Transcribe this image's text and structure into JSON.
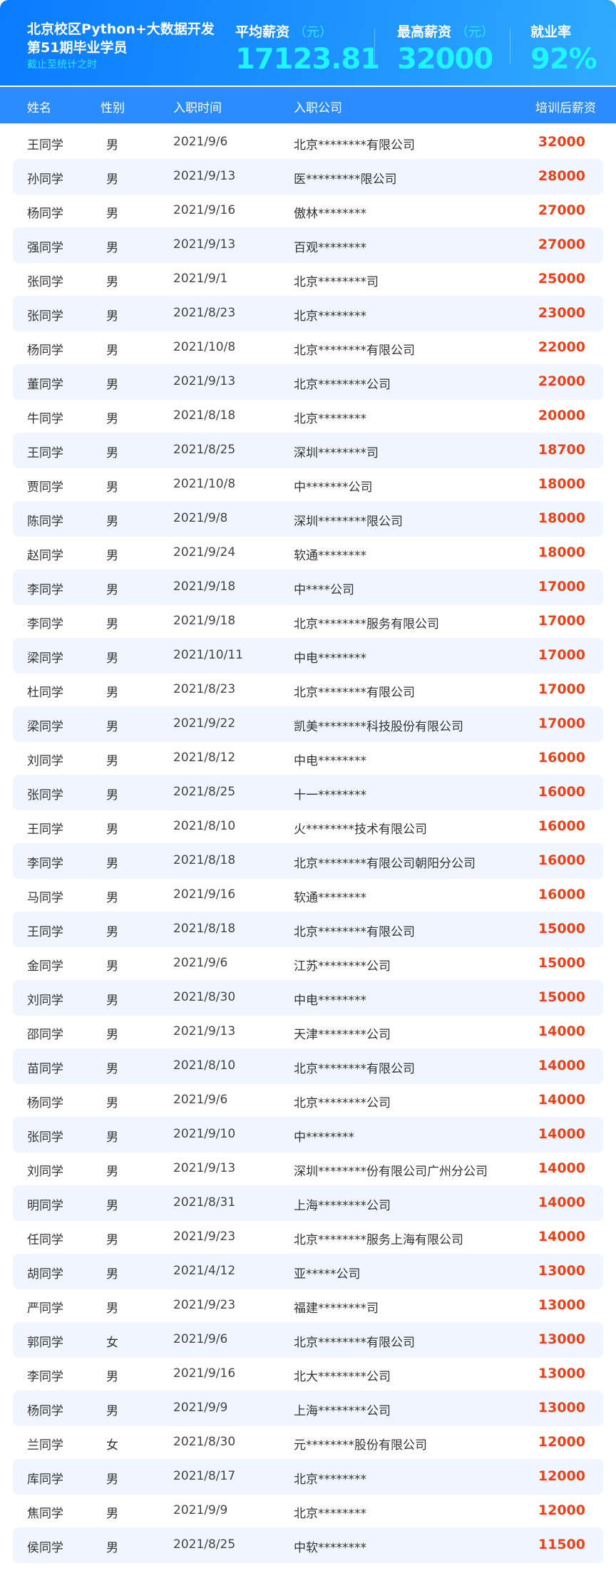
{
  "header": {
    "title_line1": "北京校区Python+大数据开发",
    "title_line2": "第51期毕业学员",
    "subtitle": "截止至统计之时",
    "stats": [
      {
        "label": "平均薪资",
        "unit": "（元）",
        "value": "17123.81"
      },
      {
        "label": "最高薪资",
        "unit": "（元）",
        "value": "32000"
      },
      {
        "label": "就业率",
        "unit": "",
        "value": "92%"
      }
    ]
  },
  "table": {
    "columns": [
      "姓名",
      "性别",
      "入职时间",
      "入职公司",
      "培训后薪资"
    ],
    "rows": [
      [
        "王同学",
        "男",
        "2021/9/6",
        "北京********有限公司",
        "32000"
      ],
      [
        "孙同学",
        "男",
        "2021/9/13",
        "医*********限公司",
        "28000"
      ],
      [
        "杨同学",
        "男",
        "2021/9/16",
        "傲林********",
        "27000"
      ],
      [
        "强同学",
        "男",
        "2021/9/13",
        "百观********",
        "27000"
      ],
      [
        "张同学",
        "男",
        "2021/9/1",
        "北京********司",
        "25000"
      ],
      [
        "张同学",
        "男",
        "2021/8/23",
        "北京********",
        "23000"
      ],
      [
        "杨同学",
        "男",
        "2021/10/8",
        "北京********有限公司",
        "22000"
      ],
      [
        "董同学",
        "男",
        "2021/9/13",
        "北京********公司",
        "22000"
      ],
      [
        "牛同学",
        "男",
        "2021/8/18",
        "北京********",
        "20000"
      ],
      [
        "王同学",
        "男",
        "2021/8/25",
        "深圳********司",
        "18700"
      ],
      [
        "贾同学",
        "男",
        "2021/10/8",
        "中*******公司",
        "18000"
      ],
      [
        "陈同学",
        "男",
        "2021/9/8",
        "深圳********限公司",
        "18000"
      ],
      [
        "赵同学",
        "男",
        "2021/9/24",
        "软通********",
        "18000"
      ],
      [
        "李同学",
        "男",
        "2021/9/18",
        "中****公司",
        "17000"
      ],
      [
        "李同学",
        "男",
        "2021/9/18",
        "北京********服务有限公司",
        "17000"
      ],
      [
        "梁同学",
        "男",
        "2021/10/11",
        "中电********",
        "17000"
      ],
      [
        "杜同学",
        "男",
        "2021/8/23",
        "北京********有限公司",
        "17000"
      ],
      [
        "梁同学",
        "男",
        "2021/9/22",
        "凯美********科技股份有限公司",
        "17000"
      ],
      [
        "刘同学",
        "男",
        "2021/8/12",
        "中电********",
        "16000"
      ],
      [
        "张同学",
        "男",
        "2021/8/25",
        "十一********",
        "16000"
      ],
      [
        "王同学",
        "男",
        "2021/8/10",
        "火********技术有限公司",
        "16000"
      ],
      [
        "李同学",
        "男",
        "2021/8/18",
        "北京********有限公司朝阳分公司",
        "16000"
      ],
      [
        "马同学",
        "男",
        "2021/9/16",
        "软通********",
        "16000"
      ],
      [
        "王同学",
        "男",
        "2021/8/18",
        "北京********有限公司",
        "15000"
      ],
      [
        "金同学",
        "男",
        "2021/9/6",
        "江苏********公司",
        "15000"
      ],
      [
        "刘同学",
        "男",
        "2021/8/30",
        "中电********",
        "15000"
      ],
      [
        "邵同学",
        "男",
        "2021/9/13",
        "天津********公司",
        "14000"
      ],
      [
        "苗同学",
        "男",
        "2021/8/10",
        "北京********有限公司",
        "14000"
      ],
      [
        "杨同学",
        "男",
        "2021/9/6",
        "北京********公司",
        "14000"
      ],
      [
        "张同学",
        "男",
        "2021/9/10",
        "中********",
        "14000"
      ],
      [
        "刘同学",
        "男",
        "2021/9/13",
        "深圳********份有限公司广州分公司",
        "14000"
      ],
      [
        "明同学",
        "男",
        "2021/8/31",
        "上海********公司",
        "14000"
      ],
      [
        "任同学",
        "男",
        "2021/9/23",
        "北京********服务上海有限公司",
        "14000"
      ],
      [
        "胡同学",
        "男",
        "2021/4/12",
        "亚*****公司",
        "13000"
      ],
      [
        "严同学",
        "男",
        "2021/9/23",
        "福建********司",
        "13000"
      ],
      [
        "郭同学",
        "女",
        "2021/9/6",
        "北京********有限公司",
        "13000"
      ],
      [
        "李同学",
        "男",
        "2021/9/16",
        "北大********公司",
        "13000"
      ],
      [
        "杨同学",
        "男",
        "2021/9/9",
        "上海********公司",
        "13000"
      ],
      [
        "兰同学",
        "女",
        "2021/8/30",
        "元********股份有限公司",
        "12000"
      ],
      [
        "库同学",
        "男",
        "2021/8/17",
        "北京********",
        "12000"
      ],
      [
        "焦同学",
        "男",
        "2021/9/9",
        "北京********",
        "12000"
      ],
      [
        "侯同学",
        "男",
        "2021/8/25",
        "中软********",
        "11500"
      ]
    ]
  },
  "colors": {
    "accent": "#1e8bff",
    "stat_value": "#1ff5ff",
    "salary": "#e8431c",
    "stripe": "#eff6ff"
  }
}
